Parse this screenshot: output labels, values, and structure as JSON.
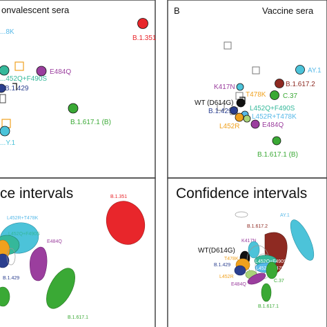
{
  "panels": {
    "a": {
      "title": "onvalescent sera",
      "labels": {
        "b1351": "B.1.351",
        "l452rf": "...8K",
        "l452qf490s": "...452Q+F490S",
        "e484q": "E484Q",
        "b1429": "B.1.429",
        "b16171b": "B.1.617.1 (B)",
        "ay1": "...Y.1"
      }
    },
    "b": {
      "letter": "B",
      "title": "Vaccine sera",
      "labels": {
        "ay1": "AY.1",
        "b16172": "B.1.617.2",
        "k417n": "K417N",
        "t478k": "T478K",
        "c37": "C.37",
        "wt": "WT (D614G)",
        "l452qf490s": "L452Q+F490S",
        "b1429": "B.1.429",
        "l452rt478k": "L452R+T478K",
        "l452r": "L452R",
        "e484q": "E484Q",
        "b16171b": "B.1.617.1 (B)"
      }
    },
    "c": {
      "title": "ce intervals",
      "labels": {
        "b1351": "B.1.351",
        "l452rt478k": "L452R+T478K",
        "l452qf490s": "L452Q+F490S",
        "e484q": "E484Q",
        "b1429": "B.1.429",
        "b16171": "B.1.617.1"
      }
    },
    "d": {
      "title": "Confidence intervals",
      "labels": {
        "ay1": "AY.1",
        "b16172": "B.1.617.2",
        "k417n": "K417N",
        "wt": "WT(D614G)",
        "t478k": "T478K",
        "b1429": "B.1.429",
        "l452r": "L452R",
        "e484q": "E484Q",
        "c37": "C.37",
        "b16171": "B.1.617.1",
        "l452qf490s_small": "L452Q+F490S",
        "l452rt478k_small": "L452R+T478K"
      }
    }
  },
  "colors": {
    "red": "#e8262b",
    "green": "#3aa935",
    "purple": "#9b3e9e",
    "teal": "#35b89a",
    "cyan": "#4cc3d9",
    "orange": "#f0a11e",
    "navy": "#2b3f8f",
    "darkred": "#8e2a22",
    "lightgreen": "#a9d47a",
    "sky": "#57b9e8",
    "grey": "#888888",
    "border": "#444444"
  }
}
